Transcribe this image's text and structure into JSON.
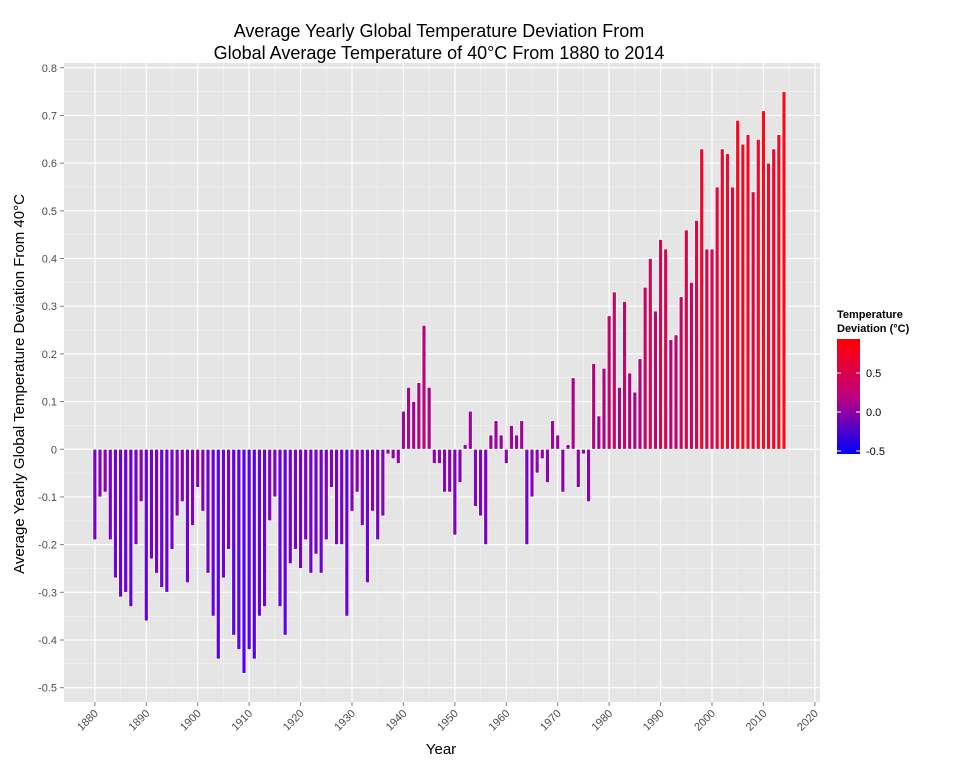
{
  "chart_data": {
    "type": "bar",
    "title_line1": "Average Yearly Global Temperature Deviation From",
    "title_line2": "Global Average Temperature of 40°C From 1880 to 2014",
    "xlabel": "Year",
    "ylabel": "Average Yearly Global Temperature Deviation From 40°C",
    "xlim": [
      1874,
      2021
    ],
    "ylim": [
      -0.53,
      0.81
    ],
    "xticks": [
      1880,
      1890,
      1900,
      1910,
      1920,
      1930,
      1940,
      1950,
      1960,
      1970,
      1980,
      1990,
      2000,
      2010,
      2020
    ],
    "yticks": [
      -0.5,
      -0.4,
      -0.3,
      -0.2,
      -0.1,
      0,
      0.1,
      0.2,
      0.3,
      0.4,
      0.5,
      0.6,
      0.7,
      0.8
    ],
    "ytick_labels": [
      "-0.5",
      "-0.4",
      "-0.3",
      "-0.2",
      "-0.1",
      "0",
      "0.1",
      "0.2",
      "0.3",
      "0.4",
      "0.5",
      "0.6",
      "0.7",
      "0.8"
    ],
    "grid": true,
    "colors": {
      "low": "#0000ff",
      "high": "#ff0000",
      "panel": "#e5e5e5",
      "grid": "#ffffff"
    },
    "legend": {
      "title_line1": "Temperature",
      "title_line2": "Deviation (°C)",
      "labels": [
        "0.5",
        "0.0",
        "-0.5"
      ],
      "position": "right"
    },
    "x": [
      1880,
      1881,
      1882,
      1883,
      1884,
      1885,
      1886,
      1887,
      1888,
      1889,
      1890,
      1891,
      1892,
      1893,
      1894,
      1895,
      1896,
      1897,
      1898,
      1899,
      1900,
      1901,
      1902,
      1903,
      1904,
      1905,
      1906,
      1907,
      1908,
      1909,
      1910,
      1911,
      1912,
      1913,
      1914,
      1915,
      1916,
      1917,
      1918,
      1919,
      1920,
      1921,
      1922,
      1923,
      1924,
      1925,
      1926,
      1927,
      1928,
      1929,
      1930,
      1931,
      1932,
      1933,
      1934,
      1935,
      1936,
      1937,
      1938,
      1939,
      1940,
      1941,
      1942,
      1943,
      1944,
      1945,
      1946,
      1947,
      1948,
      1949,
      1950,
      1951,
      1952,
      1953,
      1954,
      1955,
      1956,
      1957,
      1958,
      1959,
      1960,
      1961,
      1962,
      1963,
      1964,
      1965,
      1966,
      1967,
      1968,
      1969,
      1970,
      1971,
      1972,
      1973,
      1974,
      1975,
      1976,
      1977,
      1978,
      1979,
      1980,
      1981,
      1982,
      1983,
      1984,
      1985,
      1986,
      1987,
      1988,
      1989,
      1990,
      1991,
      1992,
      1993,
      1994,
      1995,
      1996,
      1997,
      1998,
      1999,
      2000,
      2001,
      2002,
      2003,
      2004,
      2005,
      2006,
      2007,
      2008,
      2009,
      2010,
      2011,
      2012,
      2013,
      2014
    ],
    "values": [
      -0.19,
      -0.1,
      -0.09,
      -0.19,
      -0.27,
      -0.31,
      -0.3,
      -0.33,
      -0.2,
      -0.11,
      -0.36,
      -0.23,
      -0.26,
      -0.29,
      -0.3,
      -0.21,
      -0.14,
      -0.11,
      -0.28,
      -0.16,
      -0.08,
      -0.13,
      -0.26,
      -0.35,
      -0.44,
      -0.27,
      -0.21,
      -0.39,
      -0.42,
      -0.47,
      -0.42,
      -0.44,
      -0.35,
      -0.33,
      -0.15,
      -0.1,
      -0.33,
      -0.39,
      -0.24,
      -0.21,
      -0.25,
      -0.19,
      -0.26,
      -0.22,
      -0.26,
      -0.19,
      -0.08,
      -0.2,
      -0.2,
      -0.35,
      -0.13,
      -0.09,
      -0.16,
      -0.28,
      -0.13,
      -0.19,
      -0.14,
      -0.01,
      -0.02,
      -0.03,
      0.08,
      0.13,
      0.1,
      0.14,
      0.26,
      0.13,
      -0.03,
      -0.03,
      -0.09,
      -0.09,
      -0.18,
      -0.07,
      0.01,
      0.08,
      -0.12,
      -0.14,
      -0.2,
      0.03,
      0.06,
      0.03,
      -0.03,
      0.05,
      0.03,
      0.06,
      -0.2,
      -0.1,
      -0.05,
      -0.02,
      -0.07,
      0.06,
      0.03,
      -0.09,
      0.01,
      0.15,
      -0.08,
      -0.01,
      -0.11,
      0.18,
      0.07,
      0.17,
      0.28,
      0.33,
      0.13,
      0.31,
      0.16,
      0.12,
      0.19,
      0.34,
      0.4,
      0.29,
      0.44,
      0.42,
      0.23,
      0.24,
      0.32,
      0.46,
      0.35,
      0.48,
      0.63,
      0.42,
      0.42,
      0.55,
      0.63,
      0.62,
      0.55,
      0.69,
      0.64,
      0.66,
      0.54,
      0.65,
      0.71,
      0.6,
      0.63,
      0.66,
      0.75
    ]
  }
}
